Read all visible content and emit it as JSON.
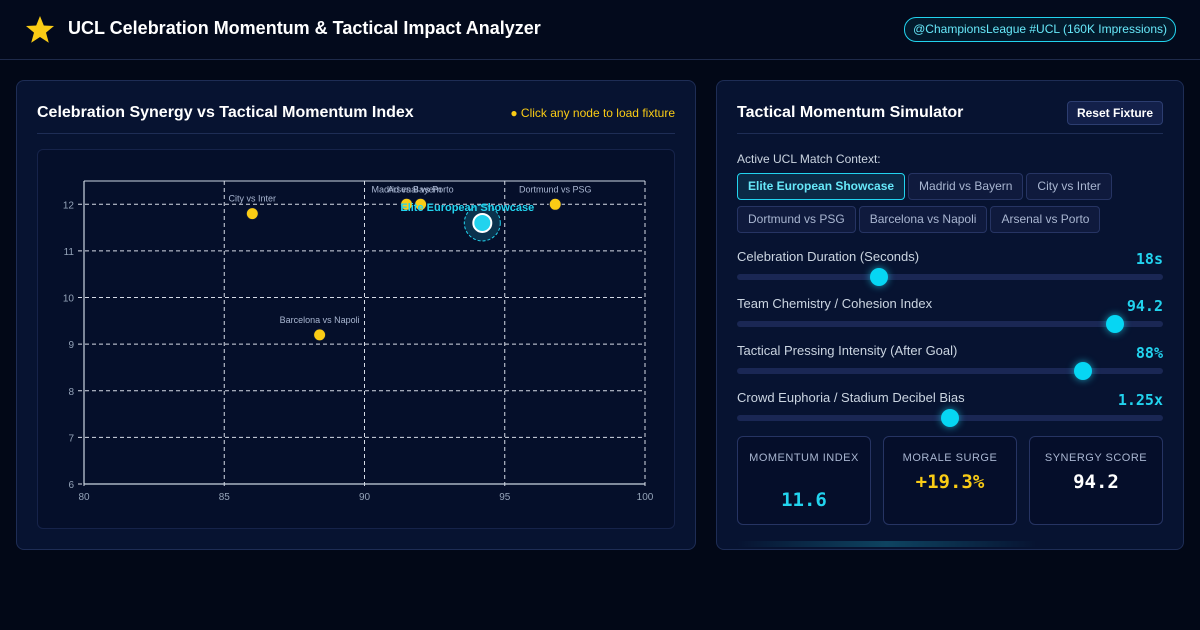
{
  "header": {
    "title": "UCL Celebration Momentum & Tactical Impact Analyzer",
    "badge": "@ChampionsLeague #UCL (160K Impressions)",
    "accent": "#22d3ee",
    "star_color": "#facc15"
  },
  "left_panel": {
    "title": "Celebration Synergy vs Tactical Momentum Index",
    "hint": "● Click any node to load fixture"
  },
  "chart_data": {
    "type": "scatter",
    "xlim": [
      80,
      100
    ],
    "ylim": [
      6,
      12.5
    ],
    "x_ticks": [
      "80",
      "85",
      "90",
      "95",
      "100"
    ],
    "y_ticks": [
      "6",
      "7",
      "8",
      "9",
      "10",
      "11",
      "12"
    ],
    "grid": true,
    "point_color": "#facc15",
    "highlight_color": "#22d3ee",
    "points": [
      {
        "label": "City vs Inter",
        "x": 86,
        "y": 11.8
      },
      {
        "label": "Madrid vs Bayern",
        "x": 91.5,
        "y": 12.0
      },
      {
        "label": "Arsenal vs Porto",
        "x": 92,
        "y": 12.0
      },
      {
        "label": "Dortmund vs PSG",
        "x": 96.8,
        "y": 12.0
      },
      {
        "label": "Barcelona vs Napoli",
        "x": 88.4,
        "y": 9.2
      },
      {
        "label": "Elite European Showcase",
        "x": 94.2,
        "y": 11.6,
        "active": true
      }
    ]
  },
  "right_panel": {
    "title": "Tactical Momentum Simulator",
    "reset_label": "Reset Fixture",
    "context_label": "Active UCL Match Context:",
    "chips": [
      {
        "label": "Elite European Showcase",
        "active": true
      },
      {
        "label": "Madrid vs Bayern"
      },
      {
        "label": "City vs Inter"
      },
      {
        "label": "Dortmund vs PSG"
      },
      {
        "label": "Barcelona vs Napoli"
      },
      {
        "label": "Arsenal vs Porto"
      }
    ],
    "sliders": [
      {
        "label": "Celebration Duration (Seconds)",
        "value": "18s",
        "level": 0.333
      },
      {
        "label": "Team Chemistry / Cohesion Index",
        "value": "94.2",
        "level": 0.887
      },
      {
        "label": "Tactical Pressing Intensity (After Goal)",
        "value": "88%",
        "level": 0.812
      },
      {
        "label": "Crowd Euphoria / Stadium Decibel Bias",
        "value": "1.25x",
        "level": 0.5
      }
    ],
    "stats": [
      {
        "label": "MOMENTUM INDEX",
        "value": "11.6",
        "color": "#22d3ee"
      },
      {
        "label": "MORALE SURGE",
        "value": "+19.3%",
        "color": "#facc15"
      },
      {
        "label": "SYNERGY SCORE",
        "value": "94.2",
        "color": "#ffffff"
      }
    ]
  }
}
